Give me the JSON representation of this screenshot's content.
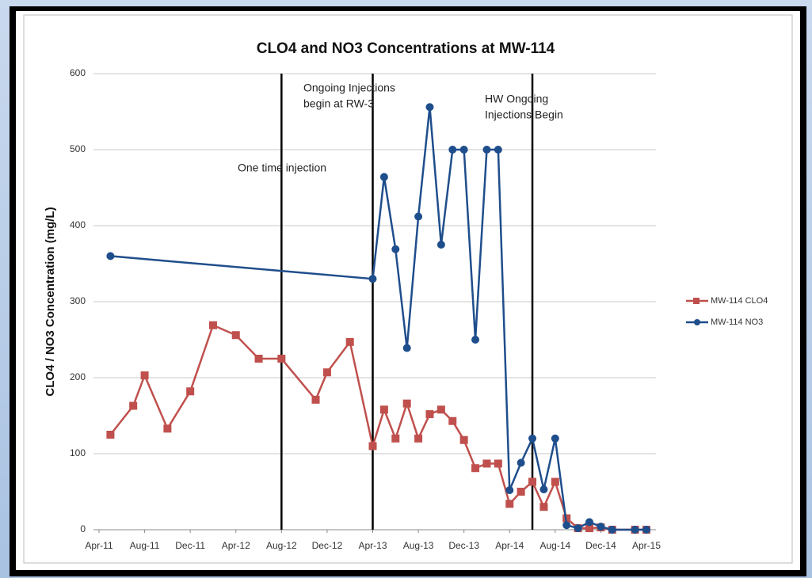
{
  "chart_data": {
    "type": "line",
    "title": "CLO4 and NO3 Concentrations at MW-114",
    "y_label": "CLO4 / NO3 Concentration (mg/L)",
    "xlim": [
      "2011-04",
      "2015-04"
    ],
    "xticks": [
      {
        "value": "2011-04",
        "label": "Apr-11"
      },
      {
        "value": "2011-08",
        "label": "Aug-11"
      },
      {
        "value": "2011-12",
        "label": "Dec-11"
      },
      {
        "value": "2012-04",
        "label": "Apr-12"
      },
      {
        "value": "2012-08",
        "label": "Aug-12"
      },
      {
        "value": "2012-12",
        "label": "Dec-12"
      },
      {
        "value": "2013-04",
        "label": "Apr-13"
      },
      {
        "value": "2013-08",
        "label": "Aug-13"
      },
      {
        "value": "2013-12",
        "label": "Dec-13"
      },
      {
        "value": "2014-04",
        "label": "Apr-14"
      },
      {
        "value": "2014-08",
        "label": "Aug-14"
      },
      {
        "value": "2014-12",
        "label": "Dec-14"
      },
      {
        "value": "2015-04",
        "label": "Apr-15"
      }
    ],
    "ylim": [
      0,
      600
    ],
    "yticks": [
      0,
      100,
      200,
      300,
      400,
      500,
      600
    ],
    "grid": true,
    "legend": "right",
    "series": [
      {
        "name": "MW-114 CLO4",
        "color": "#c0504d",
        "marker": "square",
        "x": [
          "2011-05",
          "2011-07",
          "2011-08",
          "2011-10",
          "2011-12",
          "2012-02",
          "2012-04",
          "2012-06",
          "2012-08",
          "2012-11",
          "2012-12",
          "2013-02",
          "2013-04",
          "2013-05",
          "2013-06",
          "2013-07",
          "2013-08",
          "2013-09",
          "2013-10",
          "2013-11",
          "2013-12",
          "2014-01",
          "2014-02",
          "2014-03",
          "2014-04",
          "2014-05",
          "2014-06",
          "2014-07",
          "2014-08",
          "2014-09",
          "2014-10",
          "2014-11",
          "2014-12",
          "2015-01",
          "2015-03",
          "2015-04"
        ],
        "values": [
          125,
          163,
          203,
          133,
          182,
          269,
          256,
          225,
          225,
          171,
          207,
          247,
          110,
          158,
          120,
          166,
          120,
          152,
          158,
          143,
          118,
          81,
          87,
          87,
          34,
          50,
          63,
          30,
          63,
          15,
          2,
          2,
          3,
          0,
          0,
          0
        ]
      },
      {
        "name": "MW-114 NO3",
        "color": "#1f4e8c",
        "marker": "circle",
        "x": [
          "2011-05",
          "2013-04",
          "2013-05",
          "2013-06",
          "2013-07",
          "2013-08",
          "2013-09",
          "2013-10",
          "2013-11",
          "2013-12",
          "2014-01",
          "2014-02",
          "2014-03",
          "2014-04",
          "2014-05",
          "2014-06",
          "2014-07",
          "2014-08",
          "2014-09",
          "2014-10",
          "2014-11",
          "2014-12",
          "2015-01",
          "2015-03",
          "2015-04"
        ],
        "values": [
          360,
          330,
          464,
          369,
          239,
          412,
          556,
          375,
          500,
          500,
          250,
          500,
          500,
          52,
          88,
          120,
          53,
          120,
          6,
          2,
          10,
          4,
          0,
          0,
          0
        ]
      }
    ],
    "annotations": [
      {
        "x": "2012-08",
        "text": [
          "One time injection"
        ]
      },
      {
        "x": "2013-04",
        "text": [
          "Ongoing Injections",
          "begin at RW-3"
        ]
      },
      {
        "x": "2014-06",
        "text": [
          "HW Ongoing",
          "Injections Begin"
        ]
      }
    ]
  }
}
